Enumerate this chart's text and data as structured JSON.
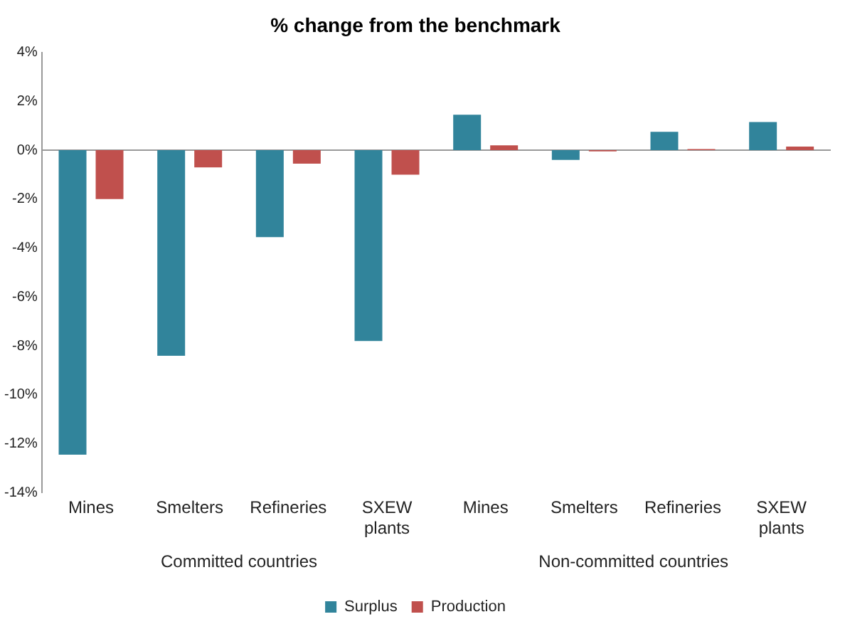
{
  "chart_data": {
    "type": "bar",
    "title": "% change from the benchmark",
    "categories": [
      "Mines",
      "Smelters",
      "Refineries",
      "SXEW plants",
      "Mines",
      "Smelters",
      "Refineries",
      "SXEW plants"
    ],
    "series": [
      {
        "name": "Surplus",
        "color": "#31849b",
        "values": [
          -12.45,
          -8.4,
          -3.55,
          -7.8,
          1.45,
          -0.4,
          0.75,
          1.15
        ]
      },
      {
        "name": "Production",
        "color": "#c0504d",
        "values": [
          -2.0,
          -0.7,
          -0.55,
          -1.0,
          0.2,
          -0.05,
          0.05,
          0.15
        ]
      }
    ],
    "annotations": [
      "Committed countries",
      "Non-committed countries"
    ],
    "ylim": [
      -14,
      4
    ],
    "yticks": [
      {
        "value": -14,
        "label": "-14%"
      },
      {
        "value": -12,
        "label": "-12%"
      },
      {
        "value": -10,
        "label": "-10%"
      },
      {
        "value": -8,
        "label": "-8%"
      },
      {
        "value": -6,
        "label": "-6%"
      },
      {
        "value": -4,
        "label": "-4%"
      },
      {
        "value": -2,
        "label": "-2%"
      },
      {
        "value": 0,
        "label": "0%"
      },
      {
        "value": 2,
        "label": "2%"
      },
      {
        "value": 4,
        "label": "4%"
      }
    ],
    "ref_lines": [
      {
        "axis": "y",
        "value": 0,
        "color": "#999999"
      }
    ],
    "grid": false,
    "legend": "bottom"
  }
}
